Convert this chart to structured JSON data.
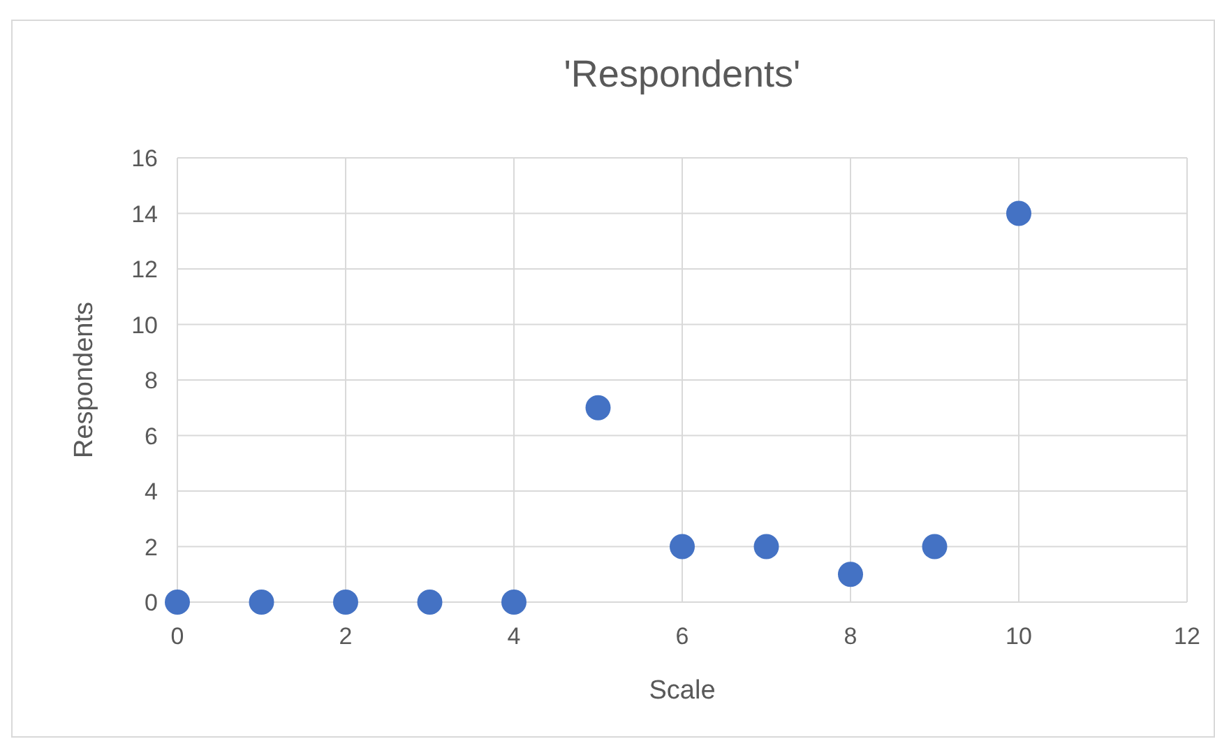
{
  "chart_data": {
    "type": "scatter",
    "title": "'Respondents'",
    "xlabel": "Scale",
    "ylabel": "Respondents",
    "x": [
      0,
      1,
      2,
      3,
      4,
      5,
      6,
      7,
      8,
      9,
      10
    ],
    "series": [
      {
        "color": "#4472c4",
        "values": [
          0,
          0,
          0,
          0,
          0,
          7,
          2,
          2,
          1,
          2,
          14
        ]
      }
    ],
    "xlim": [
      0,
      12
    ],
    "xticks": [
      0,
      2,
      4,
      6,
      8,
      10,
      12
    ],
    "ylim": [
      0,
      16
    ],
    "yticks": [
      0,
      2,
      4,
      6,
      8,
      10,
      12,
      14,
      16
    ],
    "grid": true,
    "marker": "circle"
  }
}
